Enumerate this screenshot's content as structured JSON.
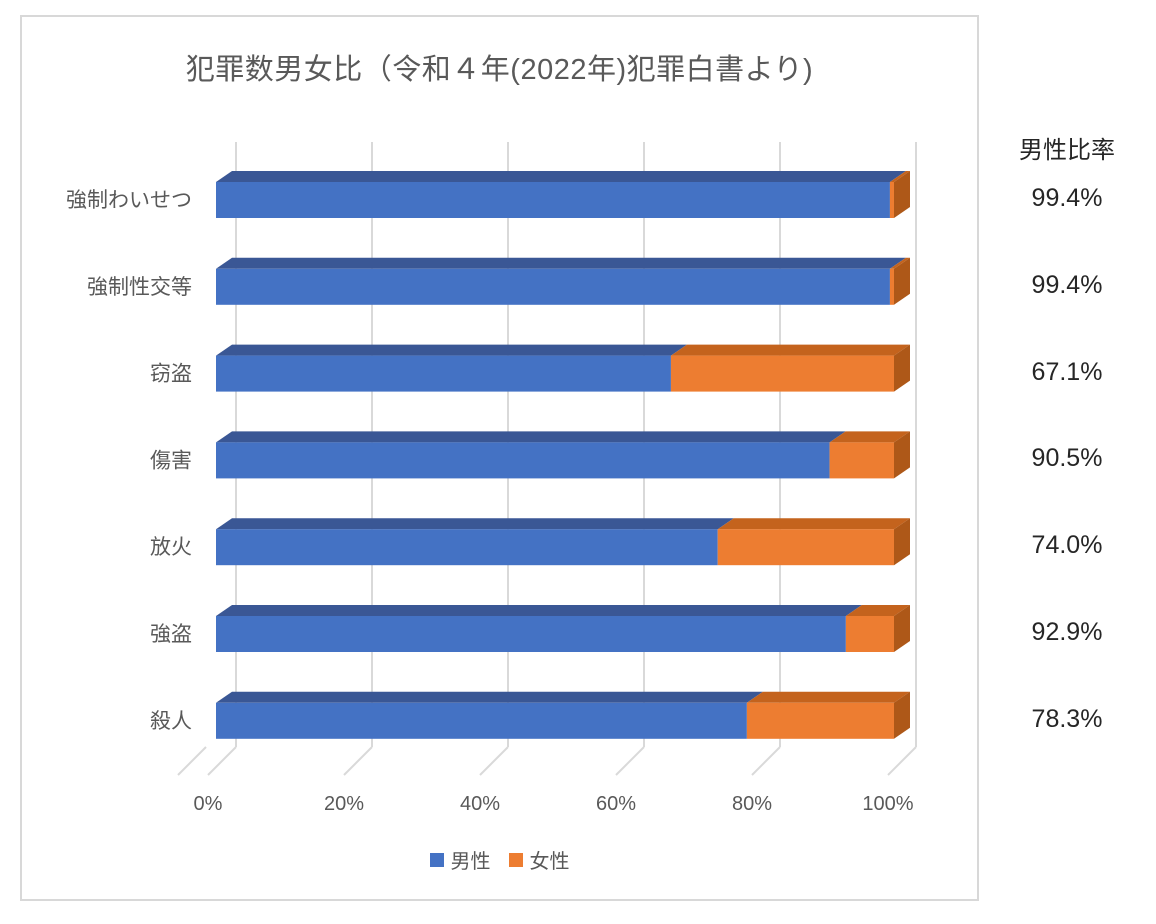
{
  "window": {
    "background": "#FFFFFF",
    "frame_border_color": "#D8D8D8"
  },
  "chart_data": {
    "type": "bar",
    "subtype": "horizontal-100%-stacked-3d",
    "title": "犯罪数男女比（令和４年(2022年)犯罪白書より)",
    "categories": [
      "強制わいせつ",
      "強制性交等",
      "窃盗",
      "傷害",
      "放火",
      "強盗",
      "殺人"
    ],
    "series": [
      {
        "name": "男性",
        "key": "male",
        "values": [
          99.4,
          99.4,
          67.1,
          90.5,
          74.0,
          92.9,
          78.3
        ],
        "color": "#4472C4",
        "top_color": "#3A5795",
        "side_color": "#2F4A7D"
      },
      {
        "name": "女性",
        "key": "female",
        "values": [
          0.6,
          0.6,
          32.9,
          9.5,
          26.0,
          7.1,
          21.7
        ],
        "color": "#ED7D31",
        "top_color": "#C4631D",
        "side_color": "#AE5818"
      }
    ],
    "x_axis": {
      "tick_labels": [
        "0%",
        "20%",
        "40%",
        "60%",
        "80%",
        "100%"
      ],
      "range": [
        0,
        100
      ],
      "grid": true,
      "gridline_color": "#D9D9D9"
    },
    "legend": {
      "position": "bottom",
      "entries": [
        "男性",
        "女性"
      ]
    },
    "right_column": {
      "header": "男性比率",
      "values": [
        "99.4%",
        "99.4%",
        "67.1%",
        "90.5%",
        "74.0%",
        "92.9%",
        "78.3%"
      ]
    },
    "text_colors": {
      "title": "#595959",
      "category": "#595959",
      "axis": "#595959",
      "legend": "#595959",
      "ratio": "#262626"
    }
  }
}
